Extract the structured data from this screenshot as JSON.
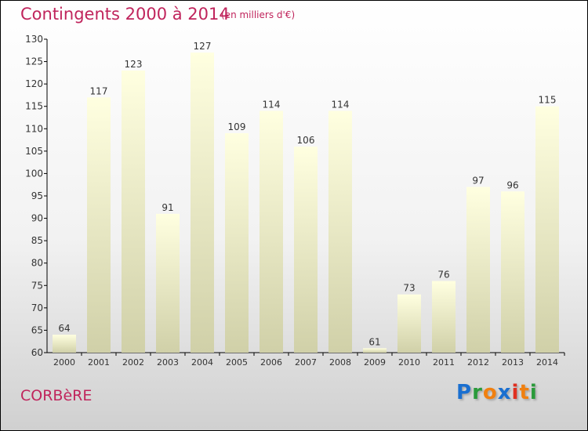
{
  "chart_data": {
    "type": "bar",
    "title": "Contingents 2000 à 2014",
    "subtitle": "(en milliers d'€)",
    "categories": [
      "2000",
      "2001",
      "2002",
      "2003",
      "2004",
      "2005",
      "2006",
      "2007",
      "2008",
      "2009",
      "2010",
      "2011",
      "2012",
      "2013",
      "2014"
    ],
    "values": [
      64,
      117,
      123,
      91,
      127,
      109,
      114,
      106,
      114,
      61,
      73,
      76,
      97,
      96,
      115
    ],
    "ylim": [
      60,
      130
    ],
    "yticks": [
      60,
      65,
      70,
      75,
      80,
      85,
      90,
      95,
      100,
      105,
      110,
      115,
      120,
      125,
      130
    ],
    "xlabel": "",
    "ylabel": ""
  },
  "commune": "CORBèRE",
  "logo": {
    "letters": [
      "P",
      "r",
      "o",
      "x",
      "i",
      "t",
      "i"
    ],
    "colors": [
      "#1a6fd0",
      "#2a9a3a",
      "#f08010",
      "#1a6fd0",
      "#e03020",
      "#f08010",
      "#2a9a3a"
    ]
  }
}
